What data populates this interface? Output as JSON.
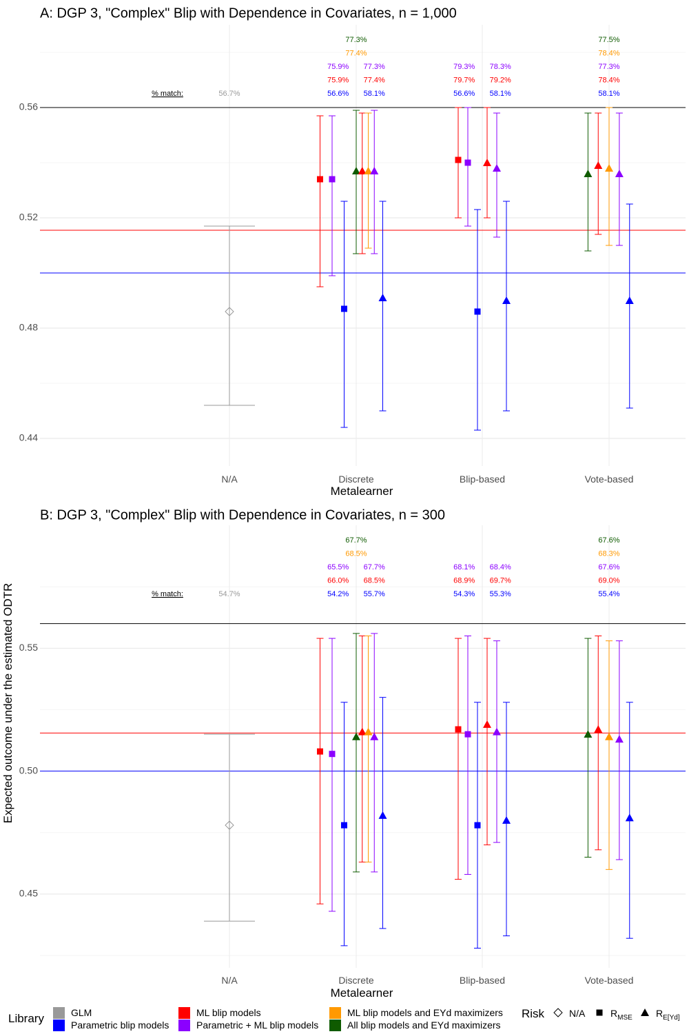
{
  "ylabel": "Expected outcome under the estimated ODTR",
  "colors": {
    "GLM": "#999999",
    "Parametric blip models": "#0000ff",
    "ML blip models": "#ff0000",
    "Parametric + ML blip models": "#8b00ff",
    "ML blip models and EYd maximizers": "#ff9900",
    "All blip models and EYd maximizers": "#0f5b00"
  },
  "legend": {
    "library_title": "Library",
    "library_items": [
      "GLM",
      "ML blip models",
      "ML blip models and EYd maximizers",
      "Parametric blip models",
      "Parametric + ML blip models",
      "All blip models and EYd maximizers"
    ],
    "risk_title": "Risk",
    "risk_items": [
      {
        "label": "N/A",
        "shape": "diamond"
      },
      {
        "label": "R",
        "sub": "MSE",
        "shape": "square"
      },
      {
        "label": "R",
        "sub": "E[Yd]",
        "shape": "triangle"
      }
    ]
  },
  "chart_data": [
    {
      "type": "scatter",
      "title": "A: DGP 3, \"Complex\" Blip with Dependence in Covariates, n = 1,000",
      "xlabel": "Metalearner",
      "categories": [
        "N/A",
        "Discrete",
        "Blip-based",
        "Vote-based"
      ],
      "ylim": [
        0.43,
        0.59
      ],
      "yticks": [
        "0.44",
        "0.48",
        "0.52",
        "0.56"
      ],
      "hlines": [
        {
          "y": 0.56,
          "color": "#000000"
        },
        {
          "y": 0.5155,
          "color": "#ff0000"
        },
        {
          "y": 0.5,
          "color": "#0000ff"
        }
      ],
      "points": [
        {
          "cat": "N/A",
          "offset": 0,
          "library": "GLM",
          "shape": "diamond",
          "y": 0.486,
          "lo": 0.452,
          "hi": 0.517
        },
        {
          "cat": "Discrete",
          "offset": -3,
          "library": "ML blip models",
          "shape": "square",
          "y": 0.534,
          "lo": 0.495,
          "hi": 0.557
        },
        {
          "cat": "Discrete",
          "offset": -2,
          "library": "Parametric + ML blip models",
          "shape": "square",
          "y": 0.534,
          "lo": 0.499,
          "hi": 0.557
        },
        {
          "cat": "Discrete",
          "offset": -1,
          "library": "Parametric blip models",
          "shape": "square",
          "y": 0.487,
          "lo": 0.444,
          "hi": 0.526
        },
        {
          "cat": "Discrete",
          "offset": 0,
          "library": "All blip models and EYd maximizers",
          "shape": "triangle",
          "y": 0.537,
          "lo": 0.507,
          "hi": 0.559
        },
        {
          "cat": "Discrete",
          "offset": 0.5,
          "library": "ML blip models",
          "shape": "triangle",
          "y": 0.537,
          "lo": 0.507,
          "hi": 0.558
        },
        {
          "cat": "Discrete",
          "offset": 1,
          "library": "ML blip models and EYd maximizers",
          "shape": "triangle",
          "y": 0.537,
          "lo": 0.509,
          "hi": 0.558
        },
        {
          "cat": "Discrete",
          "offset": 1.5,
          "library": "Parametric + ML blip models",
          "shape": "triangle",
          "y": 0.537,
          "lo": 0.507,
          "hi": 0.559
        },
        {
          "cat": "Discrete",
          "offset": 2.2,
          "library": "Parametric blip models",
          "shape": "triangle",
          "y": 0.491,
          "lo": 0.45,
          "hi": 0.526
        },
        {
          "cat": "Blip-based",
          "offset": -2,
          "library": "ML blip models",
          "shape": "square",
          "y": 0.541,
          "lo": 0.52,
          "hi": 0.56
        },
        {
          "cat": "Blip-based",
          "offset": -1.2,
          "library": "Parametric + ML blip models",
          "shape": "square",
          "y": 0.54,
          "lo": 0.517,
          "hi": 0.56
        },
        {
          "cat": "Blip-based",
          "offset": -0.4,
          "library": "Parametric blip models",
          "shape": "square",
          "y": 0.486,
          "lo": 0.443,
          "hi": 0.523
        },
        {
          "cat": "Blip-based",
          "offset": 0.4,
          "library": "ML blip models",
          "shape": "triangle",
          "y": 0.54,
          "lo": 0.52,
          "hi": 0.56
        },
        {
          "cat": "Blip-based",
          "offset": 1.2,
          "library": "Parametric + ML blip models",
          "shape": "triangle",
          "y": 0.538,
          "lo": 0.513,
          "hi": 0.558
        },
        {
          "cat": "Blip-based",
          "offset": 2,
          "library": "Parametric blip models",
          "shape": "triangle",
          "y": 0.49,
          "lo": 0.45,
          "hi": 0.526
        },
        {
          "cat": "Vote-based",
          "offset": -1.75,
          "library": "All blip models and EYd maximizers",
          "shape": "triangle",
          "y": 0.536,
          "lo": 0.508,
          "hi": 0.558
        },
        {
          "cat": "Vote-based",
          "offset": -0.9,
          "library": "ML blip models",
          "shape": "triangle",
          "y": 0.539,
          "lo": 0.514,
          "hi": 0.558
        },
        {
          "cat": "Vote-based",
          "offset": 0,
          "library": "ML blip models and EYd maximizers",
          "shape": "triangle",
          "y": 0.538,
          "lo": 0.51,
          "hi": 0.56
        },
        {
          "cat": "Vote-based",
          "offset": 0.85,
          "library": "Parametric + ML blip models",
          "shape": "triangle",
          "y": 0.536,
          "lo": 0.51,
          "hi": 0.558
        },
        {
          "cat": "Vote-based",
          "offset": 1.7,
          "library": "Parametric blip models",
          "shape": "triangle",
          "y": 0.49,
          "lo": 0.451,
          "hi": 0.525
        }
      ],
      "match_label": "% match:",
      "annotations": [
        {
          "cat": "N/A",
          "offset": 0,
          "row": 0,
          "library": "GLM",
          "text": "56.7%"
        },
        {
          "cat": "Discrete",
          "offset": -1.5,
          "row": 0,
          "library": "Parametric blip models",
          "text": "56.6%"
        },
        {
          "cat": "Discrete",
          "offset": -1.5,
          "row": 1,
          "library": "ML blip models",
          "text": "75.9%"
        },
        {
          "cat": "Discrete",
          "offset": -1.5,
          "row": 2,
          "library": "Parametric + ML blip models",
          "text": "75.9%"
        },
        {
          "cat": "Discrete",
          "offset": 1.5,
          "row": 0,
          "library": "Parametric blip models",
          "text": "58.1%"
        },
        {
          "cat": "Discrete",
          "offset": 1.5,
          "row": 1,
          "library": "ML blip models",
          "text": "77.4%"
        },
        {
          "cat": "Discrete",
          "offset": 1.5,
          "row": 2,
          "library": "Parametric + ML blip models",
          "text": "77.3%"
        },
        {
          "cat": "Discrete",
          "offset": 0,
          "row": 3,
          "library": "ML blip models and EYd maximizers",
          "text": "77.4%"
        },
        {
          "cat": "Discrete",
          "offset": 0,
          "row": 4,
          "library": "All blip models and EYd maximizers",
          "text": "77.3%"
        },
        {
          "cat": "Blip-based",
          "offset": -1.5,
          "row": 0,
          "library": "Parametric blip models",
          "text": "56.6%"
        },
        {
          "cat": "Blip-based",
          "offset": -1.5,
          "row": 1,
          "library": "ML blip models",
          "text": "79.7%"
        },
        {
          "cat": "Blip-based",
          "offset": -1.5,
          "row": 2,
          "library": "Parametric + ML blip models",
          "text": "79.3%"
        },
        {
          "cat": "Blip-based",
          "offset": 1.5,
          "row": 0,
          "library": "Parametric blip models",
          "text": "58.1%"
        },
        {
          "cat": "Blip-based",
          "offset": 1.5,
          "row": 1,
          "library": "ML blip models",
          "text": "79.2%"
        },
        {
          "cat": "Blip-based",
          "offset": 1.5,
          "row": 2,
          "library": "Parametric + ML blip models",
          "text": "78.3%"
        },
        {
          "cat": "Vote-based",
          "offset": 0,
          "row": 0,
          "library": "Parametric blip models",
          "text": "58.1%"
        },
        {
          "cat": "Vote-based",
          "offset": 0,
          "row": 1,
          "library": "ML blip models",
          "text": "78.4%"
        },
        {
          "cat": "Vote-based",
          "offset": 0,
          "row": 2,
          "library": "Parametric + ML blip models",
          "text": "77.3%"
        },
        {
          "cat": "Vote-based",
          "offset": 0,
          "row": 3,
          "library": "ML blip models and EYd maximizers",
          "text": "78.4%"
        },
        {
          "cat": "Vote-based",
          "offset": 0,
          "row": 4,
          "library": "All blip models and EYd maximizers",
          "text": "77.5%"
        }
      ]
    },
    {
      "type": "scatter",
      "title": "B: DGP 3, \"Complex\" Blip with Dependence in Covariates, n = 300",
      "xlabel": "Metalearner",
      "categories": [
        "N/A",
        "Discrete",
        "Blip-based",
        "Vote-based"
      ],
      "ylim": [
        0.42,
        0.6
      ],
      "yticks": [
        "0.45",
        "0.50",
        "0.55"
      ],
      "hlines": [
        {
          "y": 0.56,
          "color": "#000000"
        },
        {
          "y": 0.5155,
          "color": "#ff0000"
        },
        {
          "y": 0.5,
          "color": "#0000ff"
        }
      ],
      "points": [
        {
          "cat": "N/A",
          "offset": 0,
          "library": "GLM",
          "shape": "diamond",
          "y": 0.478,
          "lo": 0.439,
          "hi": 0.515
        },
        {
          "cat": "Discrete",
          "offset": -3,
          "library": "ML blip models",
          "shape": "square",
          "y": 0.508,
          "lo": 0.446,
          "hi": 0.554
        },
        {
          "cat": "Discrete",
          "offset": -2,
          "library": "Parametric + ML blip models",
          "shape": "square",
          "y": 0.507,
          "lo": 0.443,
          "hi": 0.554
        },
        {
          "cat": "Discrete",
          "offset": -1,
          "library": "Parametric blip models",
          "shape": "square",
          "y": 0.478,
          "lo": 0.429,
          "hi": 0.528
        },
        {
          "cat": "Discrete",
          "offset": 0,
          "library": "All blip models and EYd maximizers",
          "shape": "triangle",
          "y": 0.514,
          "lo": 0.459,
          "hi": 0.556
        },
        {
          "cat": "Discrete",
          "offset": 0.5,
          "library": "ML blip models",
          "shape": "triangle",
          "y": 0.516,
          "lo": 0.463,
          "hi": 0.555
        },
        {
          "cat": "Discrete",
          "offset": 1,
          "library": "ML blip models and EYd maximizers",
          "shape": "triangle",
          "y": 0.516,
          "lo": 0.463,
          "hi": 0.555
        },
        {
          "cat": "Discrete",
          "offset": 1.5,
          "library": "Parametric + ML blip models",
          "shape": "triangle",
          "y": 0.514,
          "lo": 0.459,
          "hi": 0.556
        },
        {
          "cat": "Discrete",
          "offset": 2.2,
          "library": "Parametric blip models",
          "shape": "triangle",
          "y": 0.482,
          "lo": 0.436,
          "hi": 0.53
        },
        {
          "cat": "Blip-based",
          "offset": -2,
          "library": "ML blip models",
          "shape": "square",
          "y": 0.517,
          "lo": 0.456,
          "hi": 0.554
        },
        {
          "cat": "Blip-based",
          "offset": -1.2,
          "library": "Parametric + ML blip models",
          "shape": "square",
          "y": 0.515,
          "lo": 0.458,
          "hi": 0.555
        },
        {
          "cat": "Blip-based",
          "offset": -0.4,
          "library": "Parametric blip models",
          "shape": "square",
          "y": 0.478,
          "lo": 0.428,
          "hi": 0.528
        },
        {
          "cat": "Blip-based",
          "offset": 0.4,
          "library": "ML blip models",
          "shape": "triangle",
          "y": 0.519,
          "lo": 0.47,
          "hi": 0.554
        },
        {
          "cat": "Blip-based",
          "offset": 1.2,
          "library": "Parametric + ML blip models",
          "shape": "triangle",
          "y": 0.516,
          "lo": 0.471,
          "hi": 0.553
        },
        {
          "cat": "Blip-based",
          "offset": 2,
          "library": "Parametric blip models",
          "shape": "triangle",
          "y": 0.48,
          "lo": 0.433,
          "hi": 0.528
        },
        {
          "cat": "Vote-based",
          "offset": -1.75,
          "library": "All blip models and EYd maximizers",
          "shape": "triangle",
          "y": 0.515,
          "lo": 0.465,
          "hi": 0.554
        },
        {
          "cat": "Vote-based",
          "offset": -0.9,
          "library": "ML blip models",
          "shape": "triangle",
          "y": 0.517,
          "lo": 0.468,
          "hi": 0.555
        },
        {
          "cat": "Vote-based",
          "offset": 0,
          "library": "ML blip models and EYd maximizers",
          "shape": "triangle",
          "y": 0.514,
          "lo": 0.46,
          "hi": 0.553
        },
        {
          "cat": "Vote-based",
          "offset": 0.85,
          "library": "Parametric + ML blip models",
          "shape": "triangle",
          "y": 0.513,
          "lo": 0.464,
          "hi": 0.553
        },
        {
          "cat": "Vote-based",
          "offset": 1.7,
          "library": "Parametric blip models",
          "shape": "triangle",
          "y": 0.481,
          "lo": 0.432,
          "hi": 0.528
        }
      ],
      "match_label": "% match:",
      "annotations": [
        {
          "cat": "N/A",
          "offset": 0,
          "row": 0,
          "library": "GLM",
          "text": "54.7%"
        },
        {
          "cat": "Discrete",
          "offset": -1.5,
          "row": 0,
          "library": "Parametric blip models",
          "text": "54.2%"
        },
        {
          "cat": "Discrete",
          "offset": -1.5,
          "row": 1,
          "library": "ML blip models",
          "text": "66.0%"
        },
        {
          "cat": "Discrete",
          "offset": -1.5,
          "row": 2,
          "library": "Parametric + ML blip models",
          "text": "65.5%"
        },
        {
          "cat": "Discrete",
          "offset": 1.5,
          "row": 0,
          "library": "Parametric blip models",
          "text": "55.7%"
        },
        {
          "cat": "Discrete",
          "offset": 1.5,
          "row": 1,
          "library": "ML blip models",
          "text": "68.5%"
        },
        {
          "cat": "Discrete",
          "offset": 1.5,
          "row": 2,
          "library": "Parametric + ML blip models",
          "text": "67.7%"
        },
        {
          "cat": "Discrete",
          "offset": 0,
          "row": 3,
          "library": "ML blip models and EYd maximizers",
          "text": "68.5%"
        },
        {
          "cat": "Discrete",
          "offset": 0,
          "row": 4,
          "library": "All blip models and EYd maximizers",
          "text": "67.7%"
        },
        {
          "cat": "Blip-based",
          "offset": -1.5,
          "row": 0,
          "library": "Parametric blip models",
          "text": "54.3%"
        },
        {
          "cat": "Blip-based",
          "offset": -1.5,
          "row": 1,
          "library": "ML blip models",
          "text": "68.9%"
        },
        {
          "cat": "Blip-based",
          "offset": -1.5,
          "row": 2,
          "library": "Parametric + ML blip models",
          "text": "68.1%"
        },
        {
          "cat": "Blip-based",
          "offset": 1.5,
          "row": 0,
          "library": "Parametric blip models",
          "text": "55.3%"
        },
        {
          "cat": "Blip-based",
          "offset": 1.5,
          "row": 1,
          "library": "ML blip models",
          "text": "69.7%"
        },
        {
          "cat": "Blip-based",
          "offset": 1.5,
          "row": 2,
          "library": "Parametric + ML blip models",
          "text": "68.4%"
        },
        {
          "cat": "Vote-based",
          "offset": 0,
          "row": 0,
          "library": "Parametric blip models",
          "text": "55.4%"
        },
        {
          "cat": "Vote-based",
          "offset": 0,
          "row": 1,
          "library": "ML blip models",
          "text": "69.0%"
        },
        {
          "cat": "Vote-based",
          "offset": 0,
          "row": 2,
          "library": "Parametric + ML blip models",
          "text": "67.6%"
        },
        {
          "cat": "Vote-based",
          "offset": 0,
          "row": 3,
          "library": "ML blip models and EYd maximizers",
          "text": "68.3%"
        },
        {
          "cat": "Vote-based",
          "offset": 0,
          "row": 4,
          "library": "All blip models and EYd maximizers",
          "text": "67.6%"
        }
      ]
    }
  ]
}
